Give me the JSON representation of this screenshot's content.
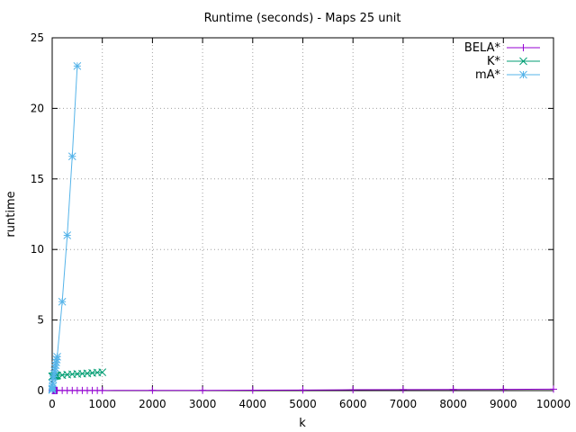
{
  "chart_data": {
    "type": "line",
    "title": "Runtime (seconds) - Maps 25 unit",
    "xlabel": "k",
    "ylabel": "runtime",
    "xlim": [
      0,
      10000
    ],
    "ylim": [
      0,
      25
    ],
    "xticks": [
      0,
      1000,
      2000,
      3000,
      4000,
      5000,
      6000,
      7000,
      8000,
      9000,
      10000
    ],
    "yticks": [
      0,
      5,
      10,
      15,
      20,
      25
    ],
    "grid": true,
    "legend_position": "top-right",
    "series": [
      {
        "name": "BELA*",
        "color": "#9400d3",
        "marker": "plus",
        "x": [
          1,
          2,
          3,
          5,
          10,
          20,
          30,
          40,
          50,
          60,
          70,
          80,
          90,
          100,
          200,
          300,
          400,
          500,
          600,
          700,
          800,
          900,
          1000,
          2000,
          3000,
          4000,
          5000,
          6000,
          7000,
          8000,
          9000,
          10000
        ],
        "y": [
          0.01,
          0.01,
          0.01,
          0.01,
          0.01,
          0.01,
          0.01,
          0.01,
          0.01,
          0.01,
          0.01,
          0.01,
          0.01,
          0.01,
          0.01,
          0.01,
          0.01,
          0.01,
          0.01,
          0.01,
          0.01,
          0.01,
          0.01,
          0.02,
          0.02,
          0.03,
          0.04,
          0.06,
          0.07,
          0.08,
          0.09,
          0.1
        ]
      },
      {
        "name": "K*",
        "color": "#009e73",
        "marker": "cross",
        "x": [
          1,
          2,
          3,
          5,
          10,
          20,
          30,
          40,
          50,
          60,
          70,
          80,
          90,
          100,
          200,
          300,
          400,
          500,
          600,
          700,
          800,
          900,
          1000
        ],
        "y": [
          1.0,
          1.0,
          1.0,
          1.0,
          1.01,
          1.02,
          1.03,
          1.03,
          1.04,
          1.05,
          1.05,
          1.06,
          1.06,
          1.07,
          1.1,
          1.13,
          1.16,
          1.18,
          1.2,
          1.22,
          1.25,
          1.28,
          1.3
        ]
      },
      {
        "name": "mA*",
        "color": "#56b4e9",
        "marker": "star",
        "x": [
          1,
          2,
          3,
          5,
          10,
          20,
          30,
          40,
          50,
          60,
          70,
          80,
          90,
          100,
          200,
          300,
          400,
          500
        ],
        "y": [
          0.05,
          0.1,
          0.15,
          0.3,
          0.5,
          0.8,
          1.0,
          1.2,
          1.4,
          1.6,
          1.8,
          2.0,
          2.2,
          2.4,
          6.3,
          11.0,
          16.6,
          23.0
        ]
      }
    ]
  }
}
